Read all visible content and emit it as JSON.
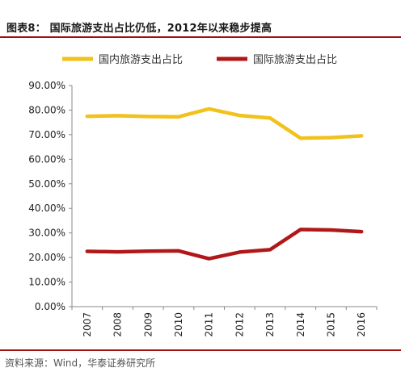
{
  "header": {
    "title": "图表8： 国际旅游支出占比仍低，2012年以来稳步提高",
    "rule_color": "#a01010"
  },
  "footer": {
    "source": "资料来源：Wind，华泰证券研究所",
    "rule_color": "#a01010"
  },
  "chart_data": {
    "type": "line",
    "title": "",
    "xlabel": "",
    "ylabel": "",
    "categories": [
      "2007",
      "2008",
      "2009",
      "2010",
      "2011",
      "2012",
      "2013",
      "2014",
      "2015",
      "2016"
    ],
    "ylim": [
      0,
      90
    ],
    "yticks": [
      "0.00%",
      "10.00%",
      "20.00%",
      "30.00%",
      "40.00%",
      "50.00%",
      "60.00%",
      "70.00%",
      "80.00%",
      "90.00%"
    ],
    "ytick_values": [
      0,
      10,
      20,
      30,
      40,
      50,
      60,
      70,
      80,
      90
    ],
    "grid": false,
    "legend_position": "top",
    "series": [
      {
        "name": "国内旅游支出占比",
        "color": "#f2c21c",
        "values": [
          77.5,
          77.7,
          77.4,
          77.3,
          80.5,
          77.8,
          76.8,
          68.6,
          68.8,
          69.5
        ]
      },
      {
        "name": "国际旅游支出占比",
        "color": "#b01818",
        "values": [
          22.5,
          22.3,
          22.6,
          22.7,
          19.5,
          22.2,
          23.2,
          31.4,
          31.2,
          30.5
        ]
      }
    ]
  }
}
